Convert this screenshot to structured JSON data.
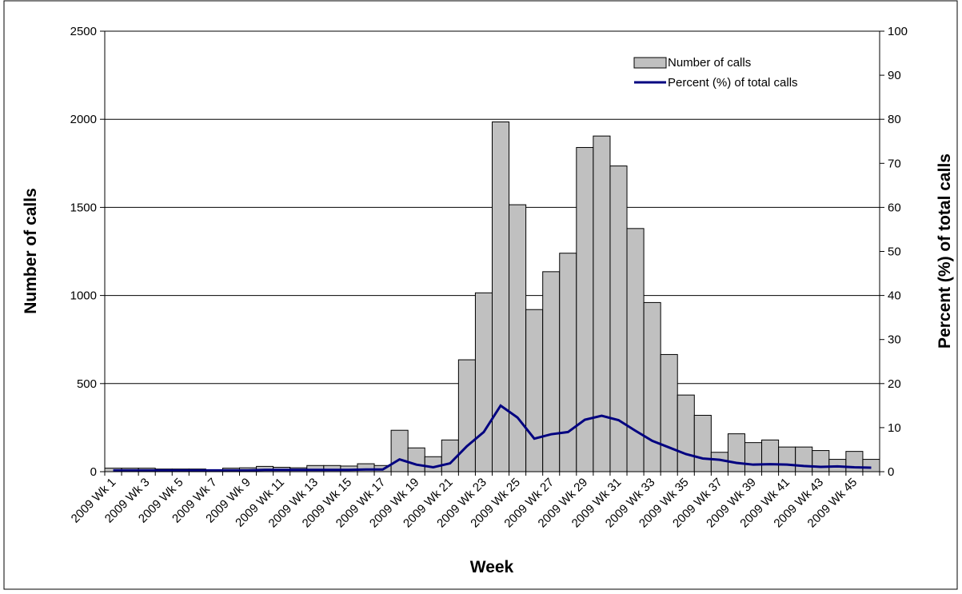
{
  "chart_data": {
    "type": "bar-line",
    "x_label": "Week",
    "y_label": "Number of calls",
    "y2_label": "Percent (%) of total calls",
    "categories": [
      "2009 Wk 1",
      null,
      "2009 Wk 3",
      null,
      "2009 Wk 5",
      null,
      "2009 Wk 7",
      null,
      "2009 Wk 9",
      null,
      "2009 Wk 11",
      null,
      "2009 Wk 13",
      null,
      "2009 Wk 15",
      null,
      "2009 Wk 17",
      null,
      "2009 Wk 19",
      null,
      "2009 Wk 21",
      null,
      "2009 Wk 23",
      null,
      "2009 Wk 25",
      null,
      "2009 Wk 27",
      null,
      "2009 Wk 29",
      null,
      "2009 Wk 31",
      null,
      "2009 Wk 33",
      null,
      "2009 Wk 35",
      null,
      "2009 Wk 37",
      null,
      "2009 Wk 39",
      null,
      "2009 Wk 41",
      null,
      "2009 Wk 43",
      null,
      "2009 Wk 45",
      null
    ],
    "series": [
      {
        "name": "Number of calls",
        "type": "bar",
        "color": "#c0c0c0",
        "axis": "y",
        "values": [
          20,
          20,
          20,
          15,
          15,
          15,
          5,
          20,
          22,
          30,
          25,
          22,
          35,
          35,
          32,
          45,
          35,
          235,
          135,
          85,
          180,
          635,
          1015,
          1985,
          1515,
          920,
          1135,
          1240,
          1840,
          1905,
          1735,
          1380,
          960,
          665,
          435,
          320,
          110,
          215,
          165,
          180,
          140,
          140,
          120,
          70,
          115,
          70
        ]
      },
      {
        "name": "Percent (%) of total calls",
        "type": "line",
        "color": "#000080",
        "axis": "y2",
        "values": [
          0.3,
          0.3,
          0.3,
          0.3,
          0.3,
          0.3,
          0.3,
          0.3,
          0.3,
          0.4,
          0.4,
          0.4,
          0.4,
          0.4,
          0.4,
          0.5,
          0.5,
          2.8,
          1.6,
          1.0,
          1.9,
          5.8,
          9,
          15,
          12.3,
          7.5,
          8.5,
          9,
          11.8,
          12.7,
          11.7,
          9.3,
          7,
          5.5,
          4,
          3,
          2.7,
          2,
          1.6,
          1.7,
          1.6,
          1.3,
          1.1,
          1.2,
          1.0,
          0.9
        ]
      }
    ],
    "ylim": [
      0,
      2500
    ],
    "yticks": [
      0,
      500,
      1000,
      1500,
      2000,
      2500
    ],
    "y2lim": [
      0,
      100
    ],
    "y2ticks": [
      0,
      10,
      20,
      30,
      40,
      50,
      60,
      70,
      80,
      90,
      100
    ],
    "grid": true,
    "legend": "top-right"
  }
}
